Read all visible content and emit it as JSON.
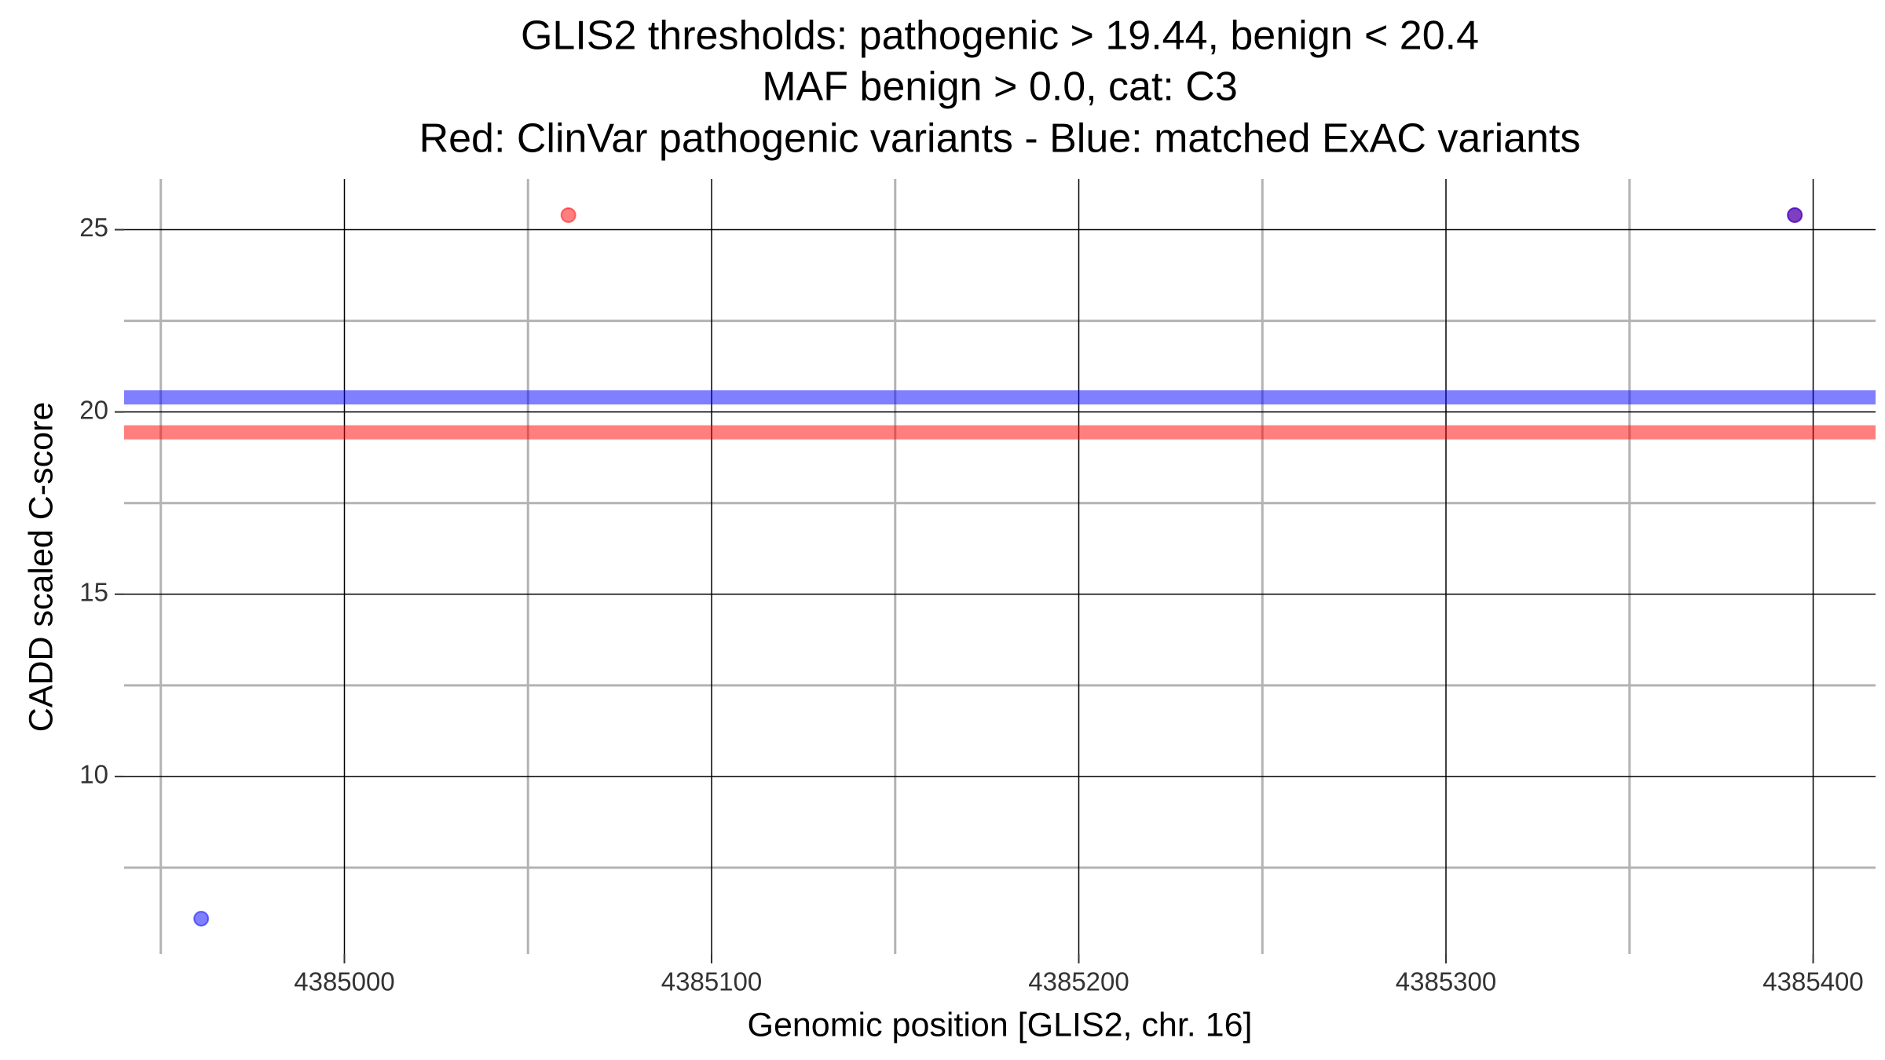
{
  "chart_data": {
    "type": "scatter",
    "title": [
      "GLIS2 thresholds: pathogenic > 19.44, benign < 20.4",
      "MAF benign > 0.0, cat: C3",
      "Red: ClinVar pathogenic variants - Blue: matched ExAC variants"
    ],
    "x_label": "Genomic position [GLIS2, chr. 16]",
    "y_label": "CADD scaled C-score",
    "series": [
      {
        "color": "#ff0000",
        "x": [
          4385061,
          4385395
        ],
        "values": [
          25.4,
          25.4
        ]
      },
      {
        "color": "#0000ff",
        "x": [
          4384961,
          4385395
        ],
        "values": [
          6.1,
          25.4
        ]
      }
    ],
    "hlines": [
      {
        "value": 19.44,
        "color": "#ff0000"
      },
      {
        "value": 20.4,
        "color": "#0000ff"
      }
    ],
    "xlim": [
      4384940,
      4385417
    ],
    "ylim": [
      5.13,
      26.39
    ],
    "xticks": [
      4385000,
      4385100,
      4385200,
      4385300,
      4385400
    ],
    "yticks": [
      10,
      15,
      20,
      25
    ],
    "xminor": [
      4384950,
      4385050,
      4385150,
      4385250,
      4385350
    ],
    "yminor": [
      7.5,
      12.5,
      17.5,
      22.5
    ],
    "grid": true
  }
}
